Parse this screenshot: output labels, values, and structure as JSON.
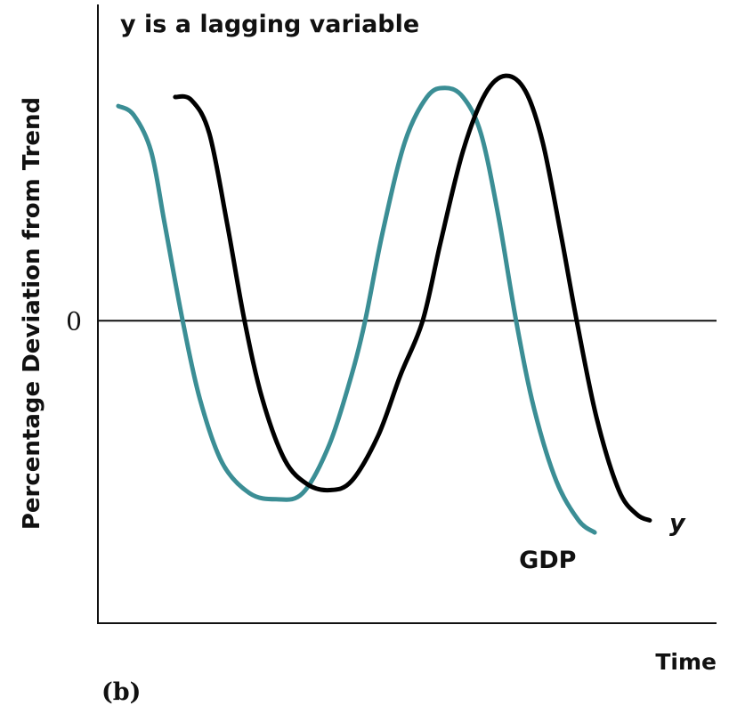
{
  "chart_data": {
    "type": "line",
    "title": "y is a lagging variable",
    "ylabel": "Percentage Deviation from Trend",
    "xlabel": "Time",
    "panel_label": "(b)",
    "xlim": [
      0,
      100
    ],
    "ylim": [
      -10,
      10.4
    ],
    "yticks": [
      0
    ],
    "series": [
      {
        "name": "GDP",
        "color": "#3b8e95",
        "x": [
          3.3,
          5.8,
          8.6,
          10.8,
          13.7,
          16.5,
          20.1,
          24.5,
          28.8,
          33.1,
          37.4,
          41.0,
          43.2,
          46.0,
          49.6,
          53.2,
          56.1,
          59.0,
          61.9,
          64.7,
          67.6,
          70.5,
          74.1,
          77.7,
          80.3
        ],
        "values": [
          7.1,
          6.8,
          5.6,
          3.2,
          0,
          -2.6,
          -4.7,
          -5.7,
          -5.9,
          -5.7,
          -4.1,
          -1.8,
          0,
          2.9,
          5.9,
          7.4,
          7.7,
          7.4,
          6.2,
          3.5,
          0,
          -2.9,
          -5.3,
          -6.6,
          -7.0
        ]
      },
      {
        "name": "y",
        "color": "#000000",
        "x": [
          12.5,
          15.1,
          18.0,
          20.9,
          23.7,
          26.6,
          30.2,
          33.8,
          37.4,
          41.0,
          45.3,
          48.9,
          52.5,
          55.4,
          59.0,
          62.6,
          65.9,
          69.1,
          71.9,
          74.8,
          77.4,
          80.6,
          84.2,
          87.1,
          89.2
        ],
        "values": [
          7.4,
          7.3,
          6.2,
          3.2,
          0,
          -2.6,
          -4.6,
          -5.4,
          -5.6,
          -5.3,
          -3.8,
          -1.8,
          0,
          2.6,
          5.6,
          7.5,
          8.1,
          7.6,
          5.9,
          2.9,
          0,
          -3.2,
          -5.6,
          -6.4,
          -6.6
        ]
      }
    ]
  }
}
